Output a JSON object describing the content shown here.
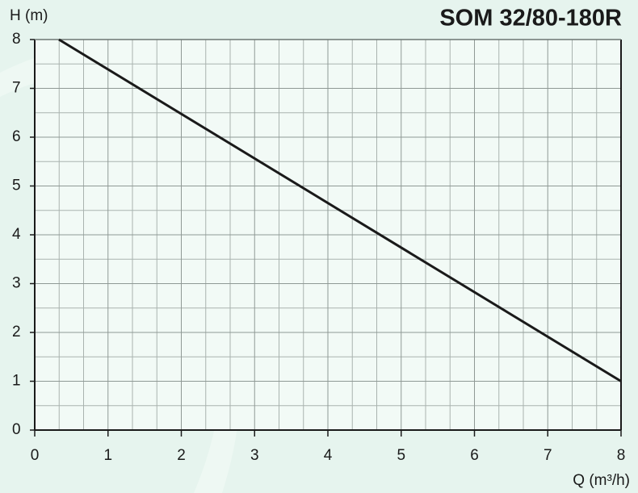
{
  "chart_data": {
    "type": "line",
    "title": "SOM 32/80-180R",
    "y_label": "H (m)",
    "x_label": "Q (m³/h)",
    "x": [
      0.33,
      8
    ],
    "series": [
      {
        "name": "SOM 32/80-180R",
        "color": "#1a1a1a",
        "values": [
          8,
          1
        ]
      }
    ],
    "xlim": [
      0,
      8
    ],
    "ylim": [
      0,
      8
    ],
    "xticks": [
      0,
      1,
      2,
      3,
      4,
      5,
      6,
      7,
      8
    ],
    "yticks": [
      0,
      1,
      2,
      3,
      4,
      5,
      6,
      7,
      8
    ],
    "grid": true,
    "minor_grid": {
      "x": 3,
      "y": 2
    }
  }
}
